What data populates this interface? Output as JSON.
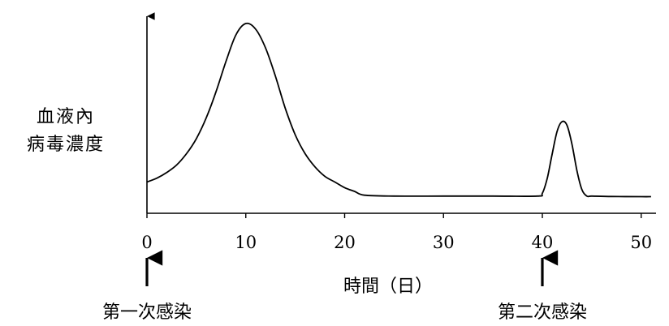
{
  "chart_data": {
    "type": "line",
    "title": "",
    "ylabel_lines": [
      "血液內",
      "病毒濃度"
    ],
    "xlabel": "時間（日）",
    "xlim": [
      0,
      51
    ],
    "ylim": [
      0,
      100
    ],
    "xticks": [
      0,
      10,
      20,
      30,
      40,
      50
    ],
    "y_tick_labels_shown": false,
    "grid": false,
    "series": [
      {
        "x": [
          0,
          1,
          2,
          3,
          4,
          5,
          6,
          7,
          8,
          9,
          10,
          11,
          12,
          13,
          14,
          15,
          16,
          17,
          18,
          19,
          20,
          21,
          22,
          25,
          30,
          35,
          39.5,
          40,
          40.5,
          41,
          41.5,
          42,
          42.5,
          43,
          43.5,
          44,
          44.5,
          45,
          47,
          50,
          51
        ],
        "y": [
          8,
          10,
          13,
          17,
          23,
          31,
          42,
          56,
          72,
          86,
          92,
          89,
          79,
          64,
          47,
          33,
          23,
          16,
          11,
          8,
          5,
          3,
          1,
          0.5,
          0.5,
          0.5,
          0.5,
          2,
          10,
          23,
          35,
          40,
          38,
          28,
          14,
          4,
          0.5,
          0.5,
          0.3,
          0.2,
          0.2
        ]
      }
    ],
    "annotations": [
      {
        "x": 0,
        "text": "第一次感染"
      },
      {
        "x": 40,
        "text": "第二次感染"
      }
    ]
  }
}
